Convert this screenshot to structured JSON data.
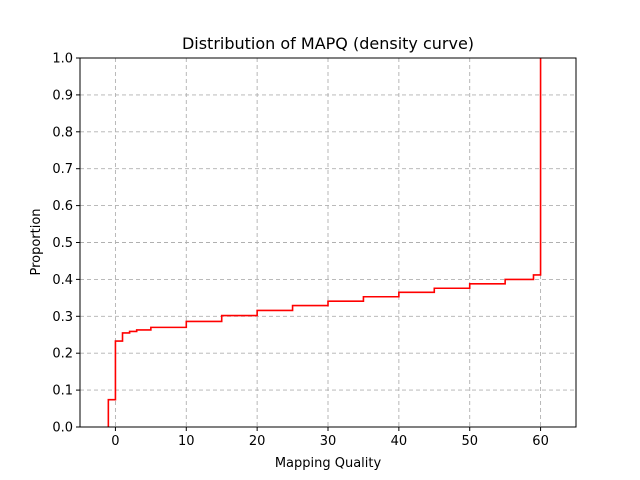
{
  "chart_data": {
    "type": "line",
    "title": "Distribution of MAPQ (density curve)",
    "xlabel": "Mapping Quality",
    "ylabel": "Proportion",
    "xlim": [
      -5,
      65
    ],
    "ylim": [
      0,
      1.0
    ],
    "xticks": [
      0,
      10,
      20,
      30,
      40,
      50,
      60
    ],
    "xtick_labels": [
      "0",
      "10",
      "20",
      "30",
      "40",
      "50",
      "60"
    ],
    "yticks": [
      0,
      0.1,
      0.2,
      0.3,
      0.4,
      0.5,
      0.6,
      0.7,
      0.8,
      0.9,
      1.0
    ],
    "ytick_labels": [
      "0.0",
      "0.1",
      "0.2",
      "0.3",
      "0.4",
      "0.5",
      "0.6",
      "0.7",
      "0.8",
      "0.9",
      "1.0"
    ],
    "grid": true,
    "series": [
      {
        "color": "#ff0000",
        "step": "post",
        "x": [
          -1,
          0,
          1,
          2,
          3,
          5,
          10,
          15,
          20,
          25,
          30,
          35,
          40,
          45,
          50,
          55,
          59,
          60
        ],
        "y": [
          0.074,
          0.233,
          0.255,
          0.259,
          0.263,
          0.27,
          0.286,
          0.302,
          0.316,
          0.329,
          0.341,
          0.353,
          0.365,
          0.376,
          0.388,
          0.4,
          0.412,
          1.0
        ]
      }
    ]
  }
}
